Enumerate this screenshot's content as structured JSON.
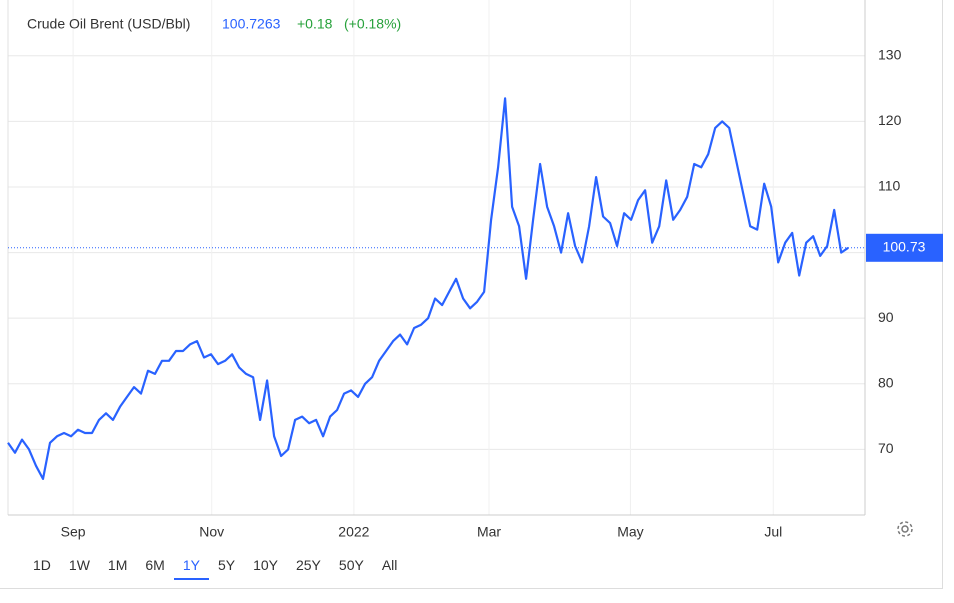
{
  "chart_data": {
    "type": "line",
    "title": "Crude Oil Brent (USD/Bbl)",
    "price": "100.7263",
    "change": "+0.18",
    "change_pct": "(+0.18%)",
    "series": [
      {
        "name": "Crude Oil Brent",
        "color": "#2962ff",
        "values": [
          71,
          69.5,
          71.5,
          70,
          67.5,
          65.5,
          71,
          72,
          72.5,
          72,
          73,
          72.5,
          72.5,
          74.5,
          75.5,
          74.5,
          76.5,
          78,
          79.5,
          78.5,
          82,
          81.5,
          83.5,
          83.5,
          85,
          85,
          86,
          86.5,
          84,
          84.5,
          83,
          83.5,
          84.5,
          82.5,
          81.5,
          81,
          74.5,
          80.5,
          72,
          69,
          70,
          74.5,
          75,
          74,
          74.5,
          72,
          75,
          76,
          78.5,
          79,
          78,
          80,
          81,
          83.5,
          85,
          86.5,
          87.5,
          86,
          88.5,
          89,
          90,
          93,
          92,
          94,
          96,
          93,
          91.5,
          92.5,
          94,
          105,
          113,
          123.5,
          107,
          104,
          96,
          105,
          113.5,
          107,
          104,
          100,
          106,
          101,
          98.5,
          104,
          111.5,
          105.5,
          104.5,
          101,
          106,
          105,
          108,
          109.5,
          101.5,
          104,
          111,
          105,
          106.5,
          108.5,
          113.5,
          113,
          115,
          119,
          120,
          119,
          114,
          109,
          104,
          103.5,
          110.5,
          107,
          98.5,
          101.5,
          103,
          96.5,
          101.5,
          102.5,
          99.5,
          101,
          106.5,
          100,
          100.73
        ]
      }
    ],
    "last_value": {
      "value": 100.73,
      "label": "100.73"
    },
    "xlim": [
      0,
      122.4
    ],
    "xticks": [
      {
        "value": 9.3,
        "label": "Sep"
      },
      {
        "value": 29.1,
        "label": "Nov"
      },
      {
        "value": 49.4,
        "label": "2022"
      },
      {
        "value": 68.7,
        "label": "Mar"
      },
      {
        "value": 88.9,
        "label": "May"
      },
      {
        "value": 109.3,
        "label": "Jul"
      }
    ],
    "ylim": [
      60,
      138.5
    ],
    "yticks": [
      70,
      80,
      90,
      100,
      110,
      120,
      130
    ],
    "grid": true,
    "ranges": [
      "1D",
      "1W",
      "1M",
      "6M",
      "1Y",
      "5Y",
      "10Y",
      "25Y",
      "50Y",
      "All"
    ],
    "selected_range": "1Y"
  }
}
